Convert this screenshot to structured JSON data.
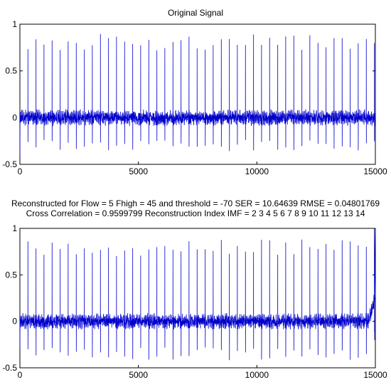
{
  "chart_data": [
    {
      "type": "line",
      "title": "Original Signal",
      "subtitle": "",
      "xlabel": "",
      "ylabel": "",
      "xlim": [
        0,
        15000
      ],
      "ylim": [
        -0.5,
        1
      ],
      "xticks": [
        "0",
        "5000",
        "10000",
        "15000"
      ],
      "yticks": [
        "-0.5",
        "0",
        "0.5",
        "1"
      ],
      "grid": false,
      "color": "#0000cc",
      "series": [
        {
          "beat_period": 340,
          "num_samples": 15000,
          "baseline": 0.0,
          "noise_band": [
            -0.12,
            0.12
          ],
          "r_peak_typical": [
            0.72,
            0.9
          ],
          "s_trough_typical": [
            -0.24,
            -0.36
          ],
          "x": [
            0,
            20,
            330,
            340,
            345,
            360,
            670,
            680,
            685,
            700,
            1010,
            1020,
            1025,
            1040,
            14620,
            14630,
            14635,
            14650,
            15000
          ],
          "y": [
            -0.42,
            0.05,
            0.0,
            0.82,
            -0.3,
            0.08,
            0.0,
            0.8,
            -0.28,
            0.08,
            0.0,
            0.78,
            -0.3,
            0.08,
            0.0,
            0.85,
            -0.35,
            0.08,
            0.0
          ]
        }
      ]
    },
    {
      "type": "line",
      "title": "Reconstructed for Flow = 5 Fhigh = 45 and threshold = -70 SER = 10.64639 RMSE = 0.04801769",
      "subtitle": "Cross Correlation = 0.9599799 Reconstruction Index IMF = 2  3  4  5  6  7  8  9  10  11  12  13  14",
      "xlabel": "",
      "ylabel": "",
      "xlim": [
        0,
        15000
      ],
      "ylim": [
        -0.5,
        1
      ],
      "xticks": [
        "0",
        "5000",
        "10000",
        "15000"
      ],
      "yticks": [
        "-0.5",
        "0",
        "0.5",
        "1"
      ],
      "grid": false,
      "color": "#0000cc",
      "series": [
        {
          "beat_period": 340,
          "num_samples": 15000,
          "baseline": 0.0,
          "noise_band": [
            -0.12,
            0.12
          ],
          "r_peak_typical": [
            0.7,
            0.88
          ],
          "s_trough_typical": [
            -0.28,
            -0.42
          ],
          "x": [
            0,
            20,
            330,
            340,
            345,
            360,
            14620,
            14630,
            14635,
            14650,
            14900,
            14960,
            15000
          ],
          "y": [
            -0.3,
            0.05,
            0.0,
            0.8,
            -0.35,
            0.08,
            0.0,
            0.84,
            -0.4,
            0.08,
            0.25,
            0.95,
            -0.15
          ]
        }
      ]
    }
  ]
}
